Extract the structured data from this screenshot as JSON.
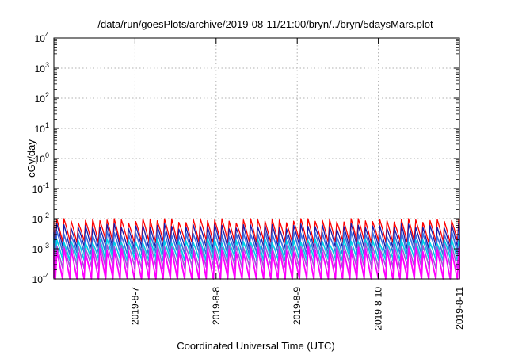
{
  "chart_data": {
    "type": "line",
    "title": "/data/run/goesPlots/archive/2019-08-11/21:00/bryn/../bryn/5daysMars.plot",
    "ylabel": "cGy/day",
    "xlabel": "Coordinated Universal Time (UTC)",
    "y_scale": "log",
    "ylim_exp": [
      -4,
      4
    ],
    "y_ticks": [
      {
        "base": "10",
        "exp": "4"
      },
      {
        "base": "10",
        "exp": "3"
      },
      {
        "base": "10",
        "exp": "2"
      },
      {
        "base": "10",
        "exp": "1"
      },
      {
        "base": "10",
        "exp": "0"
      },
      {
        "base": "10",
        "exp": "-1"
      },
      {
        "base": "10",
        "exp": "-2"
      },
      {
        "base": "10",
        "exp": "-3"
      },
      {
        "base": "10",
        "exp": "-4"
      }
    ],
    "xlim_days": [
      0,
      5
    ],
    "x_ticks": [
      {
        "label": "2019-8-7",
        "day": 1.0
      },
      {
        "label": "2019-8-8",
        "day": 2.0
      },
      {
        "label": "2019-8-9",
        "day": 3.0
      },
      {
        "label": "2019-8-10",
        "day": 4.0
      },
      {
        "label": "2019-8-11",
        "day": 5.0
      }
    ],
    "grid": true,
    "pattern": {
      "cycles_per_day": 11.3,
      "peak_exp_min": -2.1,
      "peak_exp_max": -2.0
    },
    "series": [
      {
        "name": "red",
        "color": "#ff0000",
        "peak_exp": -2.05,
        "trough_exp": -2.75,
        "width": 1.3
      },
      {
        "name": "dark blue",
        "color": "#1a1aa8",
        "peak_exp": -2.25,
        "trough_exp": -2.95,
        "width": 1.3
      },
      {
        "name": "blue",
        "color": "#3b6fe0",
        "peak_exp": -2.5,
        "trough_exp": -3.15,
        "width": 1.6
      },
      {
        "name": "cyan",
        "color": "#00d0e8",
        "peak_exp": -2.75,
        "trough_exp": -3.35,
        "width": 1.6
      },
      {
        "name": "purple",
        "color": "#9b5cd6",
        "peak_exp": -2.9,
        "trough_exp": -3.6,
        "width": 1.6
      },
      {
        "name": "magenta",
        "color": "#ff00ff",
        "peak_exp": -3.05,
        "trough_exp": -4.0,
        "width": 1.8
      }
    ]
  }
}
